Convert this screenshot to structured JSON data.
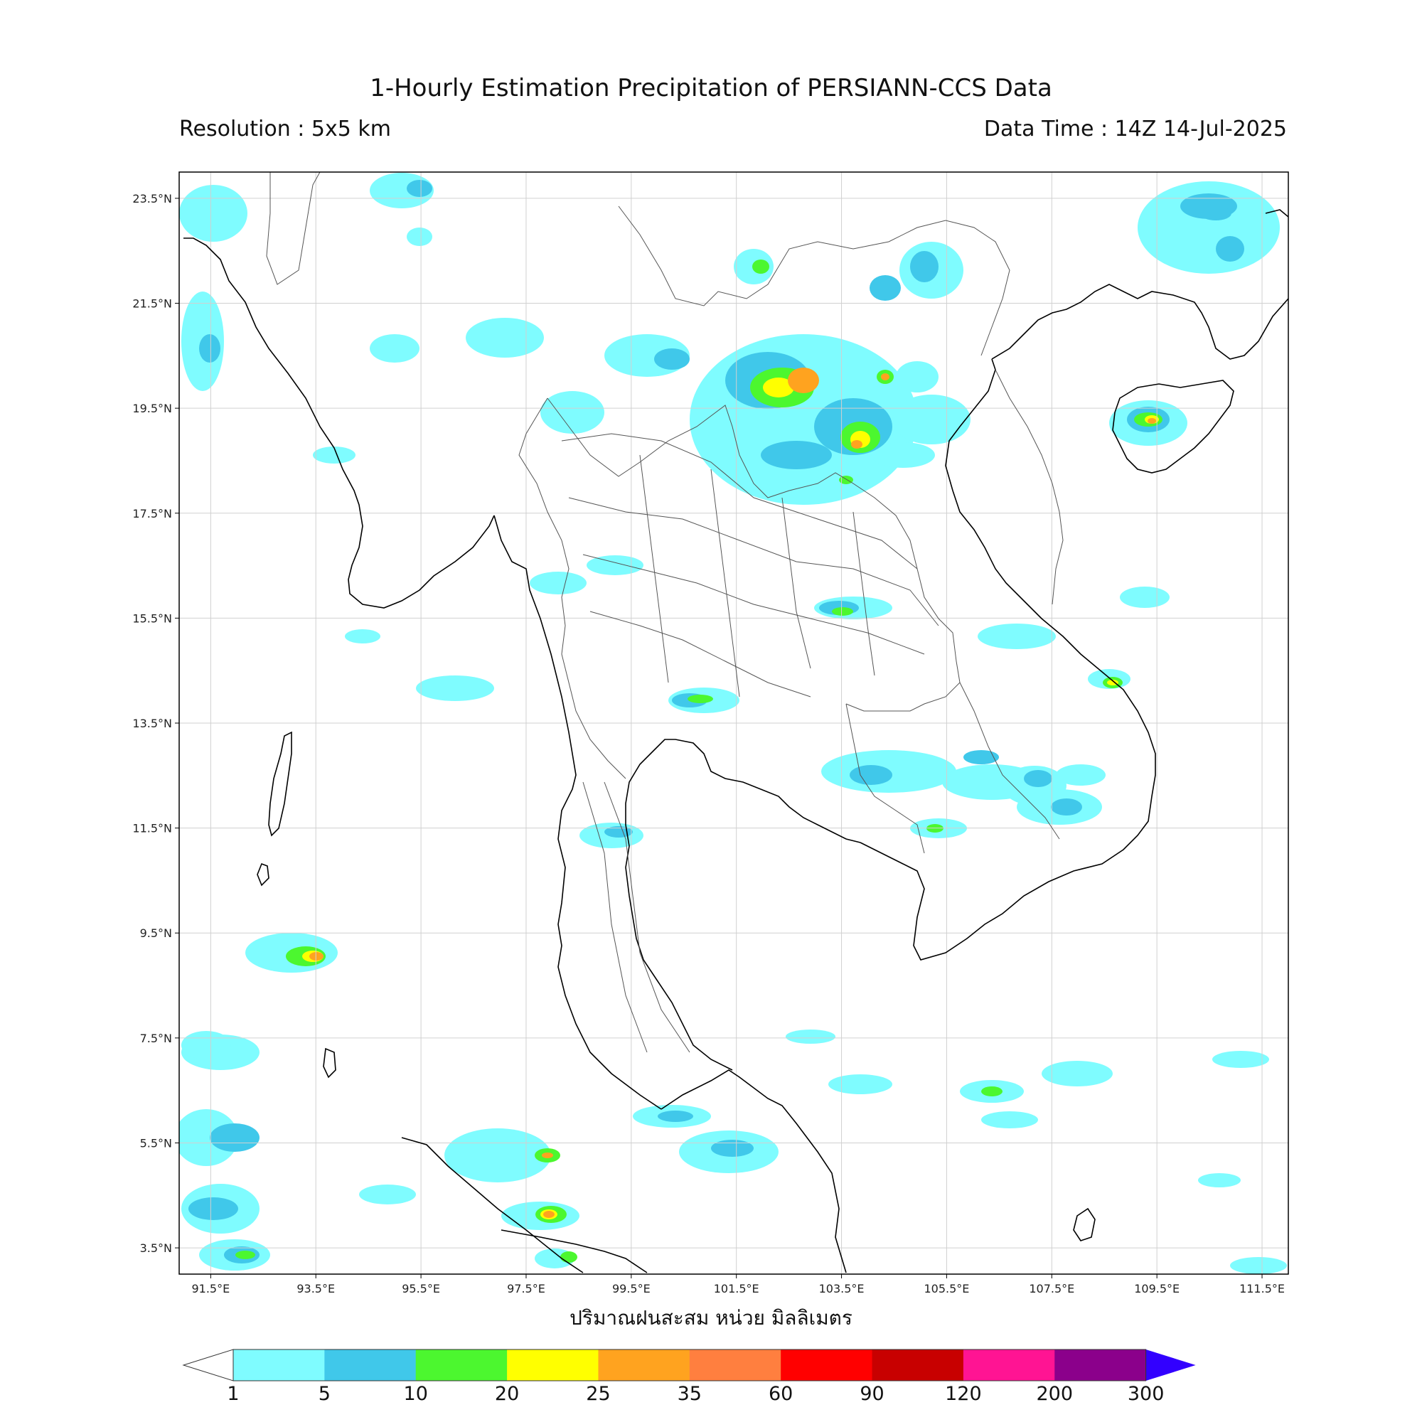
{
  "title": "1-Hourly Estimation Precipitation of PERSIANN-CCS Data",
  "resolution": "Resolution : 5x5 km",
  "data_time": "Data Time : 14Z 14-Jul-2025",
  "units_label": "ปริมาณฝนสะสม หน่วย มิลลิเมตร",
  "map": {
    "lon_ticks": [
      "91.5°E",
      "93.5°E",
      "95.5°E",
      "97.5°E",
      "99.5°E",
      "101.5°E",
      "103.5°E",
      "105.5°E",
      "107.5°E",
      "109.5°E",
      "111.5°E"
    ],
    "lat_ticks": [
      "23.5°N",
      "21.5°N",
      "19.5°N",
      "17.5°N",
      "15.5°N",
      "13.5°N",
      "11.5°N",
      "9.5°N",
      "7.5°N",
      "5.5°N",
      "3.5°N"
    ],
    "extent": {
      "lon_min": 90.9,
      "lon_max": 112.0,
      "lat_min": 3.0,
      "lat_max": 24.0
    },
    "gridlines": true
  },
  "colorbar": {
    "labels": [
      "1",
      "5",
      "10",
      "20",
      "25",
      "35",
      "60",
      "90",
      "120",
      "200",
      "300"
    ],
    "colors": [
      "#7ffcff",
      "#40c8ea",
      "#4cf72f",
      "#ffff00",
      "#ffa31f",
      "#ff7f3f",
      "#ff0000",
      "#c80000",
      "#ff1493",
      "#8b008b",
      "#3200ff"
    ],
    "extend": "both"
  }
}
